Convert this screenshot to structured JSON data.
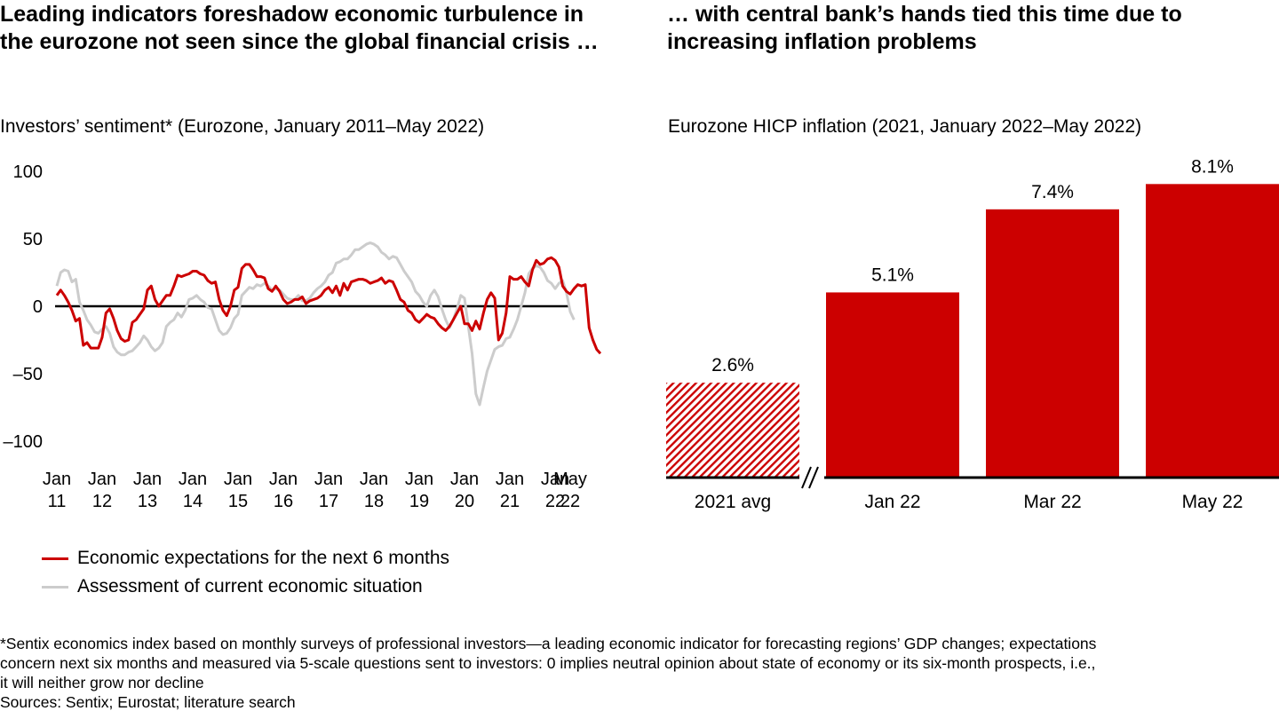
{
  "left_panel": {
    "title": "Leading indicators foreshadow economic turbulence in the eurozone not seen since the global financial crisis …",
    "subtitle": "Investors’ sentiment* (Eurozone, January 2011–May 2022)"
  },
  "right_panel": {
    "title": "… with central bank’s hands tied this time due to increasing inflation problems",
    "subtitle": "Eurozone HICP inflation (2021, January 2022–May 2022)"
  },
  "legend": [
    {
      "label": "Economic expectations for the next 6 months",
      "color": "#cc0000"
    },
    {
      "label": "Assessment of current economic situation",
      "color": "#cccccc"
    }
  ],
  "footnote": {
    "lines": [
      "*Sentix economics index based on monthly surveys of professional investors—a leading economic indicator for forecasting regions’ GDP changes; expectations",
      "concern next six months and measured via 5-scale questions sent to investors: 0 implies neutral opinion about state of economy or its six-month prospects, i.e.,",
      "it will neither grow nor decline"
    ],
    "sources": "Sources: Sentix; Eurostat; literature search"
  },
  "chart_data": [
    {
      "type": "line",
      "title": "Investors’ sentiment* (Eurozone, January 2011–May 2022)",
      "xlabel": "",
      "ylabel": "",
      "ylim": [
        -100,
        100
      ],
      "yticks": [
        "100",
        "50",
        "0",
        "–50",
        "–100"
      ],
      "ytick_values": [
        100,
        50,
        0,
        -50,
        -100
      ],
      "xtick_labels": [
        {
          "top": "Jan",
          "bottom": "11",
          "month_index": 0
        },
        {
          "top": "Jan",
          "bottom": "12",
          "month_index": 12
        },
        {
          "top": "Jan",
          "bottom": "13",
          "month_index": 24
        },
        {
          "top": "Jan",
          "bottom": "14",
          "month_index": 36
        },
        {
          "top": "Jan",
          "bottom": "15",
          "month_index": 48
        },
        {
          "top": "Jan",
          "bottom": "16",
          "month_index": 60
        },
        {
          "top": "Jan",
          "bottom": "17",
          "month_index": 72
        },
        {
          "top": "Jan",
          "bottom": "18",
          "month_index": 84
        },
        {
          "top": "Jan",
          "bottom": "19",
          "month_index": 96
        },
        {
          "top": "Jan",
          "bottom": "20",
          "month_index": 108
        },
        {
          "top": "Jan",
          "bottom": "21",
          "month_index": 120
        },
        {
          "top": "Jan",
          "bottom": "22",
          "month_index": 132
        },
        {
          "top": "May",
          "bottom": "22",
          "month_index": 136
        }
      ],
      "x_start": "Jan 2011",
      "x_end": "May 2022",
      "zero_line": true,
      "grid": false,
      "legend_position": "bottom-left",
      "series": [
        {
          "name": "Economic expectations for the next 6 months",
          "color": "#cc0000",
          "values": [
            8,
            12,
            8,
            3,
            -3,
            -11,
            -9,
            -29,
            -27,
            -31,
            -31,
            -31,
            -23,
            -5,
            -2,
            -9,
            -18,
            -24,
            -26,
            -25,
            -12,
            -10,
            -6,
            -2,
            12,
            15,
            5,
            0,
            4,
            8,
            8,
            15,
            23,
            22,
            23,
            24,
            26,
            26,
            24,
            23,
            19,
            17,
            18,
            5,
            -3,
            -7,
            0,
            12,
            14,
            28,
            31,
            31,
            27,
            22,
            22,
            21,
            13,
            11,
            15,
            11,
            5,
            2,
            3,
            5,
            5,
            7,
            2,
            4,
            5,
            6,
            8,
            12,
            14,
            10,
            15,
            8,
            17,
            12,
            18,
            19,
            20,
            20,
            19,
            17,
            18,
            19,
            21,
            17,
            19,
            18,
            12,
            5,
            3,
            -3,
            -5,
            -10,
            -12,
            -9,
            -6,
            -8,
            -9,
            -13,
            -16,
            -18,
            -15,
            -10,
            -5,
            0,
            -13,
            -13,
            -18,
            -11,
            -17,
            -5,
            5,
            10,
            6,
            -25,
            -20,
            -5,
            22,
            20,
            20,
            22,
            18,
            15,
            27,
            34,
            31,
            32,
            35,
            36,
            34,
            29,
            15,
            11,
            9,
            13,
            16,
            15,
            16,
            -16,
            -25,
            -32,
            -35
          ]
        },
        {
          "name": "Assessment of current economic situation",
          "color": "#cccccc",
          "values": [
            15,
            25,
            27,
            26,
            18,
            20,
            3,
            -3,
            -10,
            -14,
            -19,
            -20,
            -17,
            -15,
            -20,
            -30,
            -34,
            -36,
            -36,
            -34,
            -33,
            -30,
            -27,
            -22,
            -25,
            -30,
            -33,
            -31,
            -27,
            -15,
            -12,
            -10,
            -5,
            -8,
            -3,
            5,
            6,
            8,
            5,
            3,
            -1,
            -2,
            -10,
            -18,
            -21,
            -20,
            -16,
            -9,
            -6,
            8,
            11,
            14,
            13,
            16,
            15,
            17,
            15,
            12,
            13,
            12,
            9,
            6,
            5,
            5,
            8,
            4,
            4,
            6,
            10,
            13,
            15,
            18,
            23,
            25,
            32,
            33,
            35,
            35,
            38,
            42,
            42,
            44,
            46,
            47,
            46,
            44,
            40,
            38,
            35,
            37,
            36,
            31,
            26,
            22,
            18,
            11,
            8,
            3,
            0,
            8,
            12,
            7,
            -2,
            -10,
            -16,
            -10,
            -2,
            8,
            6,
            -15,
            -35,
            -65,
            -73,
            -60,
            -48,
            -40,
            -32,
            -30,
            -29,
            -24,
            -23,
            -17,
            -10,
            0,
            10,
            24,
            28,
            30,
            29,
            25,
            19,
            17,
            13,
            17,
            19,
            10,
            -4,
            -10
          ]
        }
      ]
    },
    {
      "type": "bar",
      "title": "Eurozone HICP inflation (2021, January 2022–May 2022)",
      "categories": [
        "2021 avg",
        "Jan 22",
        "Mar 22",
        "May 22"
      ],
      "values": [
        2.6,
        5.1,
        7.4,
        8.1
      ],
      "value_labels": [
        "2.6%",
        "5.1%",
        "7.4%",
        "8.1%"
      ],
      "value_unit": "%",
      "bar_styles": [
        "hatched",
        "solid",
        "solid",
        "solid"
      ],
      "color": "#cc0000",
      "axis_break": "between 2021 avg and Jan 22",
      "xlabel": "",
      "ylabel": "",
      "grid": false
    }
  ]
}
